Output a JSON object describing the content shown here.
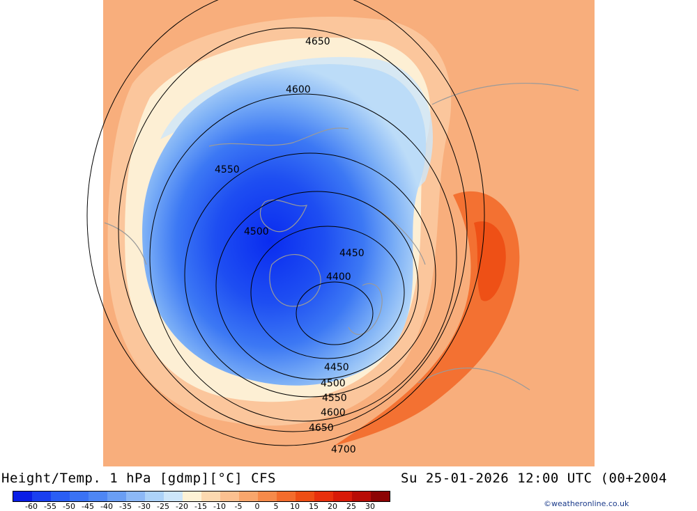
{
  "title": {
    "left": "Height/Temp. 1 hPa [gdmp][°C] CFS",
    "right": "Su 25-01-2026 12:00 UTC (00+2004"
  },
  "contours": {
    "labels": [
      "4400",
      "4450",
      "4450",
      "4500",
      "4500",
      "4550",
      "4550",
      "4600",
      "4600",
      "4650",
      "4650",
      "4700"
    ]
  },
  "legend": {
    "colors": [
      "#0a1ee6",
      "#1a3ff0",
      "#2a5ef4",
      "#3a72f4",
      "#4e86f4",
      "#6a9ef4",
      "#8cb8f6",
      "#acd2f8",
      "#cde6fa",
      "#fdf2d6",
      "#fcd9b0",
      "#fbc090",
      "#f8a66c",
      "#f68a4a",
      "#f36c2c",
      "#ee4e14",
      "#e8300c",
      "#d81a08",
      "#b80c06",
      "#8c0404"
    ],
    "ticks": [
      "-60",
      "-55",
      "-50",
      "-45",
      "-40",
      "-35",
      "-30",
      "-25",
      "-20",
      "-15",
      "-10",
      "-5",
      "0",
      "5",
      "10",
      "15",
      "20",
      "25",
      "30"
    ]
  },
  "credit": "©weatheronline.co.uk"
}
